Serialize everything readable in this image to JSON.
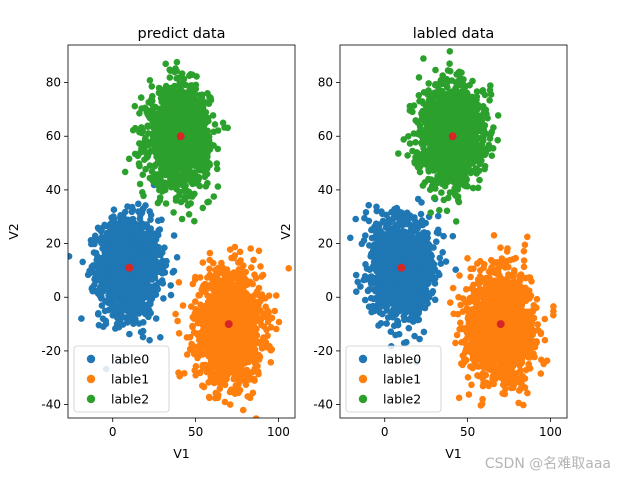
{
  "watermark": "CSDN @名难取aaa",
  "chart_data": [
    {
      "type": "scatter",
      "title": "predict data",
      "xlabel": "V1",
      "ylabel": "V2",
      "xlim": [
        -27,
        110
      ],
      "ylim": [
        -45,
        94
      ],
      "xticks": [
        0,
        50,
        100
      ],
      "yticks": [
        -40,
        -20,
        0,
        20,
        40,
        60,
        80
      ],
      "grid": false,
      "legend_position": "lower-left",
      "series": [
        {
          "name": "lable0",
          "color": "#1f77b4",
          "center": [
            10,
            11
          ],
          "spread": [
            9,
            9
          ],
          "n": 1500
        },
        {
          "name": "lable1",
          "color": "#ff7f0e",
          "center": [
            70,
            -11
          ],
          "spread": [
            10,
            10
          ],
          "n": 1500
        },
        {
          "name": "lable2",
          "color": "#2ca02c",
          "center": [
            40,
            60
          ],
          "spread": [
            9,
            9
          ],
          "n": 1500
        }
      ],
      "centroids": {
        "color": "#d62728",
        "points": [
          [
            10,
            11
          ],
          [
            70,
            -10
          ],
          [
            41,
            60
          ]
        ]
      }
    },
    {
      "type": "scatter",
      "title": "labled data",
      "xlabel": "V1",
      "ylabel": "V2",
      "xlim": [
        -27,
        110
      ],
      "ylim": [
        -45,
        94
      ],
      "xticks": [
        0,
        50,
        100
      ],
      "yticks": [
        -40,
        -20,
        0,
        20,
        40,
        60,
        80
      ],
      "grid": false,
      "legend_position": "lower-left",
      "series": [
        {
          "name": "lable0",
          "color": "#1f77b4",
          "center": [
            10,
            11
          ],
          "spread": [
            9,
            9
          ],
          "n": 1500
        },
        {
          "name": "lable1",
          "color": "#ff7f0e",
          "center": [
            70,
            -11
          ],
          "spread": [
            10,
            10
          ],
          "n": 1500
        },
        {
          "name": "lable2",
          "color": "#2ca02c",
          "center": [
            40,
            60
          ],
          "spread": [
            9,
            9
          ],
          "n": 1500
        }
      ],
      "centroids": {
        "color": "#d62728",
        "points": [
          [
            10,
            11
          ],
          [
            70,
            -10
          ],
          [
            41,
            60
          ]
        ]
      }
    }
  ]
}
